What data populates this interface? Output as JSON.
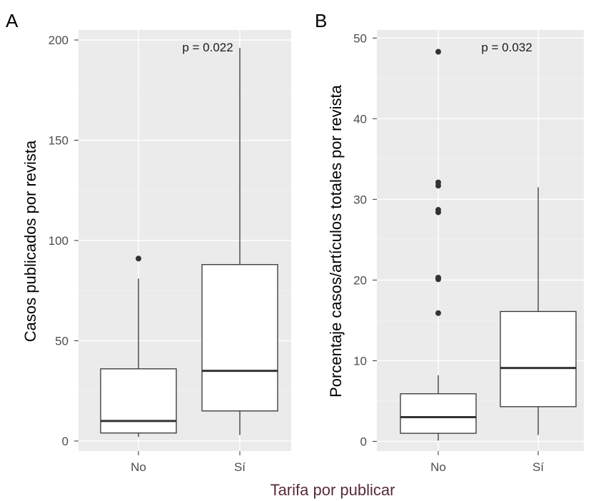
{
  "figure": {
    "shared_xlabel": "Tarifa por publicar"
  },
  "chart_data": [
    {
      "panel": "A",
      "type": "box",
      "title": "",
      "xlabel": "",
      "ylabel": "Casos publicados por revista",
      "categories": [
        "No",
        "Sí"
      ],
      "ylim": [
        -5,
        205
      ],
      "yticks": [
        0,
        50,
        100,
        150,
        200
      ],
      "grid": true,
      "annotation": "p = 0.022",
      "boxes": [
        {
          "category": "No",
          "whisker_low": 2,
          "q1": 4,
          "median": 10,
          "q3": 36,
          "whisker_high": 81,
          "outliers": [
            91
          ]
        },
        {
          "category": "Sí",
          "whisker_low": 3,
          "q1": 15,
          "median": 35,
          "q3": 88,
          "whisker_high": 196,
          "outliers": []
        }
      ]
    },
    {
      "panel": "B",
      "type": "box",
      "title": "",
      "xlabel": "",
      "ylabel": "Porcentaje casos/artículos totales por revista",
      "categories": [
        "No",
        "Sí"
      ],
      "ylim": [
        -1.2,
        51
      ],
      "yticks": [
        0,
        10,
        20,
        30,
        40,
        50
      ],
      "grid": true,
      "annotation": "p = 0.032",
      "boxes": [
        {
          "category": "No",
          "whisker_low": 0.1,
          "q1": 1,
          "median": 3,
          "q3": 5.9,
          "whisker_high": 8.2,
          "outliers": [
            15.9,
            20.1,
            20.3,
            28.4,
            28.7,
            31.7,
            32.1,
            48.3
          ]
        },
        {
          "category": "Sí",
          "whisker_low": 0.8,
          "q1": 4.3,
          "median": 9.1,
          "q3": 16.1,
          "whisker_high": 31.5,
          "outliers": []
        }
      ]
    }
  ]
}
